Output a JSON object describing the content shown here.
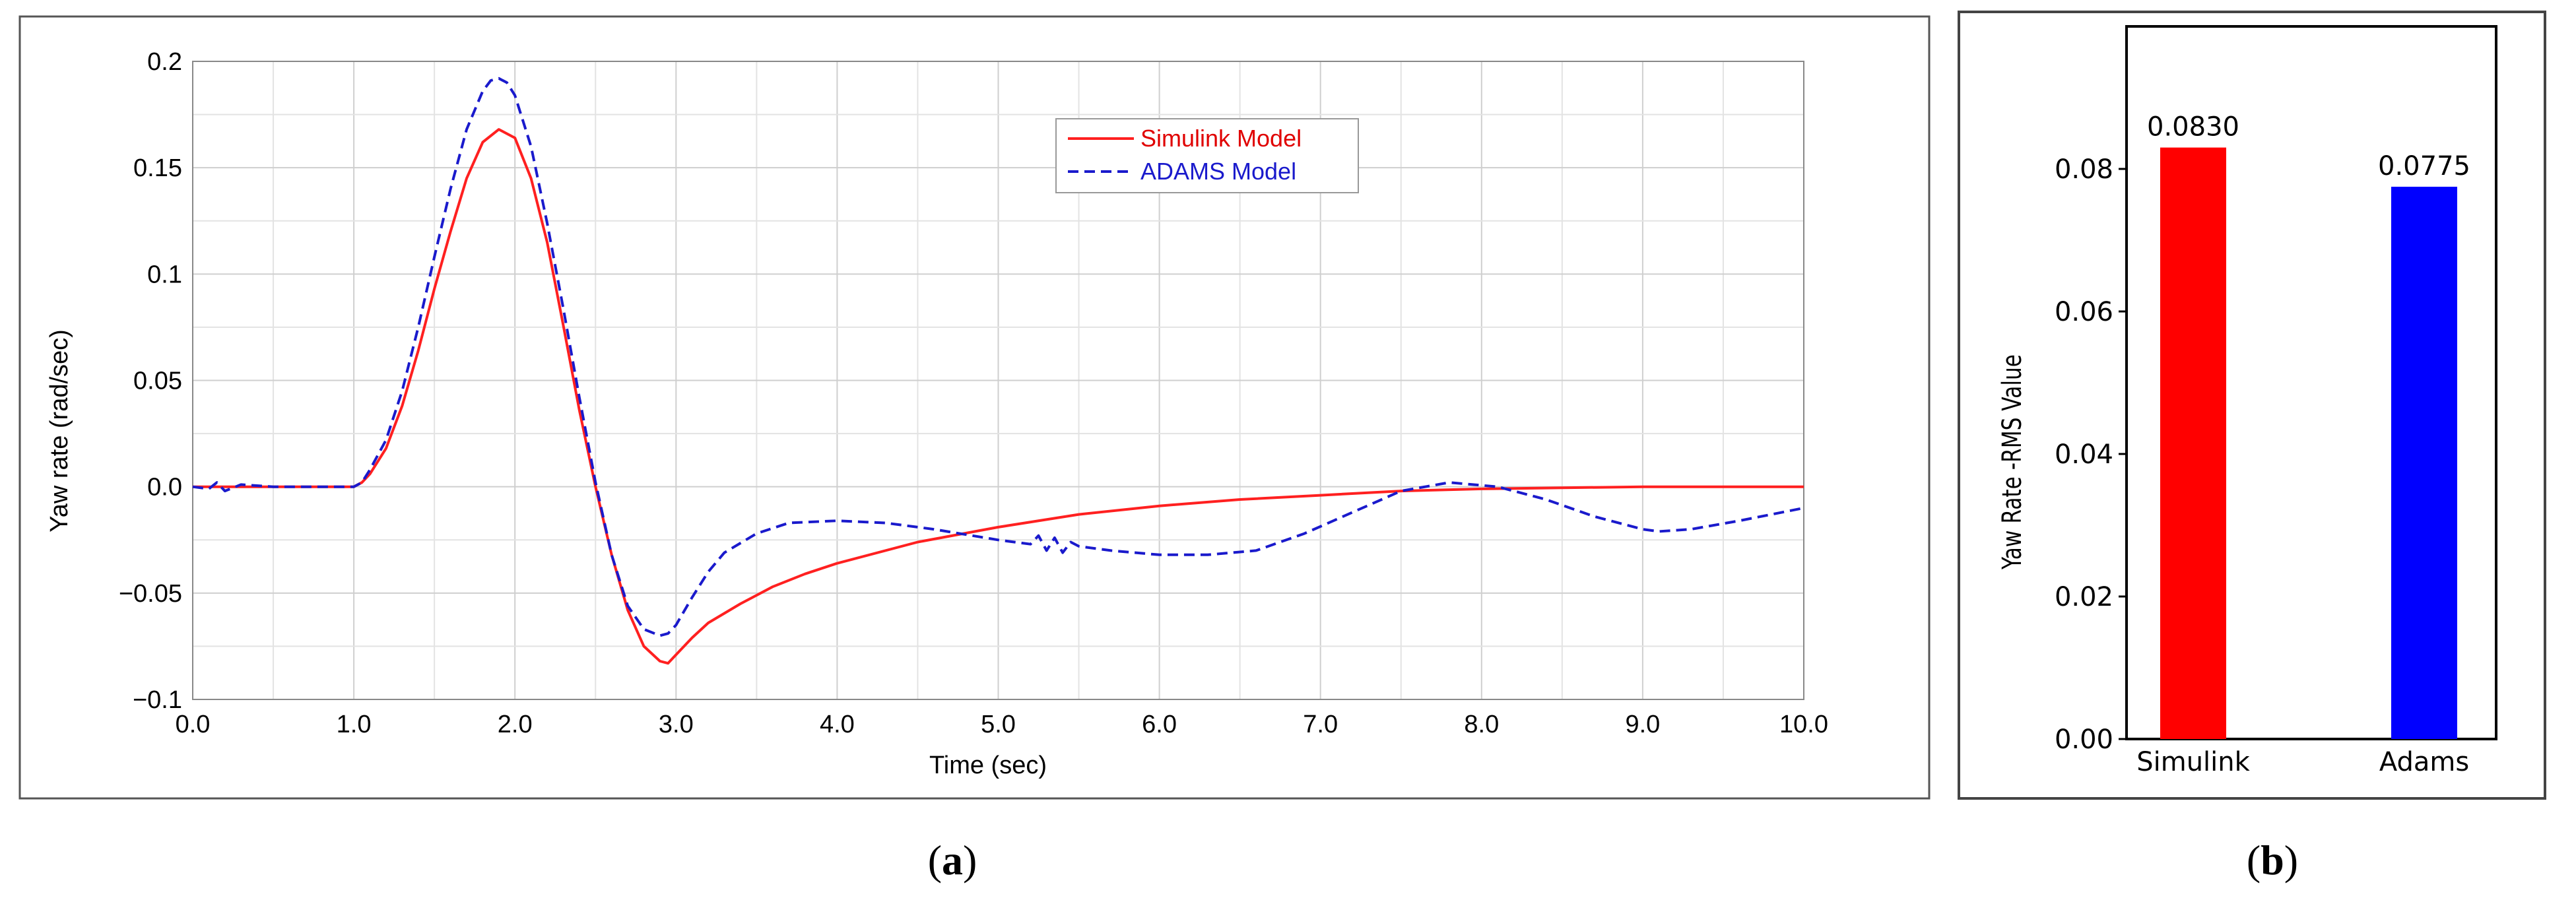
{
  "panels": {
    "a": {
      "caption_open": "(",
      "caption_letter": "a",
      "caption_close": ")"
    },
    "b": {
      "caption_open": "(",
      "caption_letter": "b",
      "caption_close": ")"
    }
  },
  "chart_data": [
    {
      "id": "a",
      "type": "line",
      "title": "",
      "xlabel": "Time (sec)",
      "ylabel": "Yaw rate (rad/sec)",
      "xlim": [
        0,
        10
      ],
      "ylim": [
        -0.1,
        0.2
      ],
      "grid": true,
      "legend_position": "top-center",
      "xticks": [
        "0.0",
        "1.0",
        "2.0",
        "3.0",
        "4.0",
        "5.0",
        "6.0",
        "7.0",
        "8.0",
        "9.0",
        "10.0"
      ],
      "yticks": [
        "0.2",
        "0.15",
        "0.1",
        "0.05",
        "0.0",
        "−0.05",
        "−0.1"
      ],
      "series": [
        {
          "name": "Simulink Model",
          "color": "#ff2020",
          "dash": "solid",
          "x": [
            0,
            0.5,
            1.0,
            1.05,
            1.1,
            1.2,
            1.3,
            1.4,
            1.5,
            1.6,
            1.7,
            1.8,
            1.9,
            2.0,
            2.1,
            2.2,
            2.3,
            2.4,
            2.5,
            2.6,
            2.7,
            2.8,
            2.9,
            2.95,
            3.0,
            3.1,
            3.2,
            3.4,
            3.6,
            3.8,
            4.0,
            4.5,
            5.0,
            5.5,
            6.0,
            6.5,
            7.0,
            7.5,
            8.0,
            8.5,
            9.0,
            9.5,
            10.0
          ],
          "y": [
            0,
            0,
            0,
            0.002,
            0.006,
            0.018,
            0.038,
            0.064,
            0.093,
            0.12,
            0.145,
            0.162,
            0.168,
            0.164,
            0.145,
            0.115,
            0.076,
            0.036,
            0.0,
            -0.032,
            -0.058,
            -0.075,
            -0.082,
            -0.083,
            -0.079,
            -0.071,
            -0.064,
            -0.055,
            -0.047,
            -0.041,
            -0.036,
            -0.026,
            -0.019,
            -0.013,
            -0.009,
            -0.006,
            -0.004,
            -0.002,
            -0.001,
            -0.0005,
            0,
            0,
            0
          ]
        },
        {
          "name": "ADAMS Model",
          "color": "#1a1acc",
          "dash": "dashed",
          "x": [
            0,
            0.1,
            0.15,
            0.2,
            0.3,
            0.5,
            0.7,
            1.0,
            1.05,
            1.1,
            1.2,
            1.3,
            1.4,
            1.5,
            1.6,
            1.7,
            1.8,
            1.85,
            1.9,
            1.95,
            2.0,
            2.1,
            2.2,
            2.3,
            2.4,
            2.5,
            2.6,
            2.7,
            2.8,
            2.9,
            2.95,
            3.0,
            3.1,
            3.2,
            3.3,
            3.5,
            3.7,
            4.0,
            4.3,
            4.6,
            5.0,
            5.2,
            5.25,
            5.3,
            5.35,
            5.4,
            5.45,
            5.5,
            5.7,
            6.0,
            6.3,
            6.6,
            6.9,
            7.2,
            7.5,
            7.8,
            8.1,
            8.4,
            8.7,
            9.0,
            9.1,
            9.3,
            9.6,
            10.0
          ],
          "y": [
            0,
            -0.001,
            0.002,
            -0.002,
            0.001,
            0,
            0,
            0,
            0.002,
            0.008,
            0.022,
            0.045,
            0.075,
            0.108,
            0.14,
            0.168,
            0.186,
            0.191,
            0.192,
            0.19,
            0.184,
            0.16,
            0.124,
            0.084,
            0.042,
            0.002,
            -0.032,
            -0.056,
            -0.067,
            -0.07,
            -0.069,
            -0.065,
            -0.052,
            -0.04,
            -0.031,
            -0.022,
            -0.017,
            -0.016,
            -0.017,
            -0.02,
            -0.025,
            -0.027,
            -0.023,
            -0.03,
            -0.024,
            -0.031,
            -0.026,
            -0.028,
            -0.03,
            -0.032,
            -0.032,
            -0.03,
            -0.022,
            -0.012,
            -0.002,
            0.002,
            0.0,
            -0.006,
            -0.014,
            -0.02,
            -0.021,
            -0.02,
            -0.016,
            -0.01
          ]
        }
      ]
    },
    {
      "id": "b",
      "type": "bar",
      "title": "",
      "xlabel": "",
      "ylabel": "Yaw Rate -RMS Value",
      "ylim": [
        0,
        0.1
      ],
      "grid": false,
      "categories": [
        "Simulink",
        "Adams"
      ],
      "values": [
        0.083,
        0.0775
      ],
      "value_labels": [
        "0.0830",
        "0.0775"
      ],
      "colors": [
        "#ff0000",
        "#0000ff"
      ],
      "yticks": [
        "0.00",
        "0.02",
        "0.04",
        "0.06",
        "0.08"
      ]
    }
  ]
}
